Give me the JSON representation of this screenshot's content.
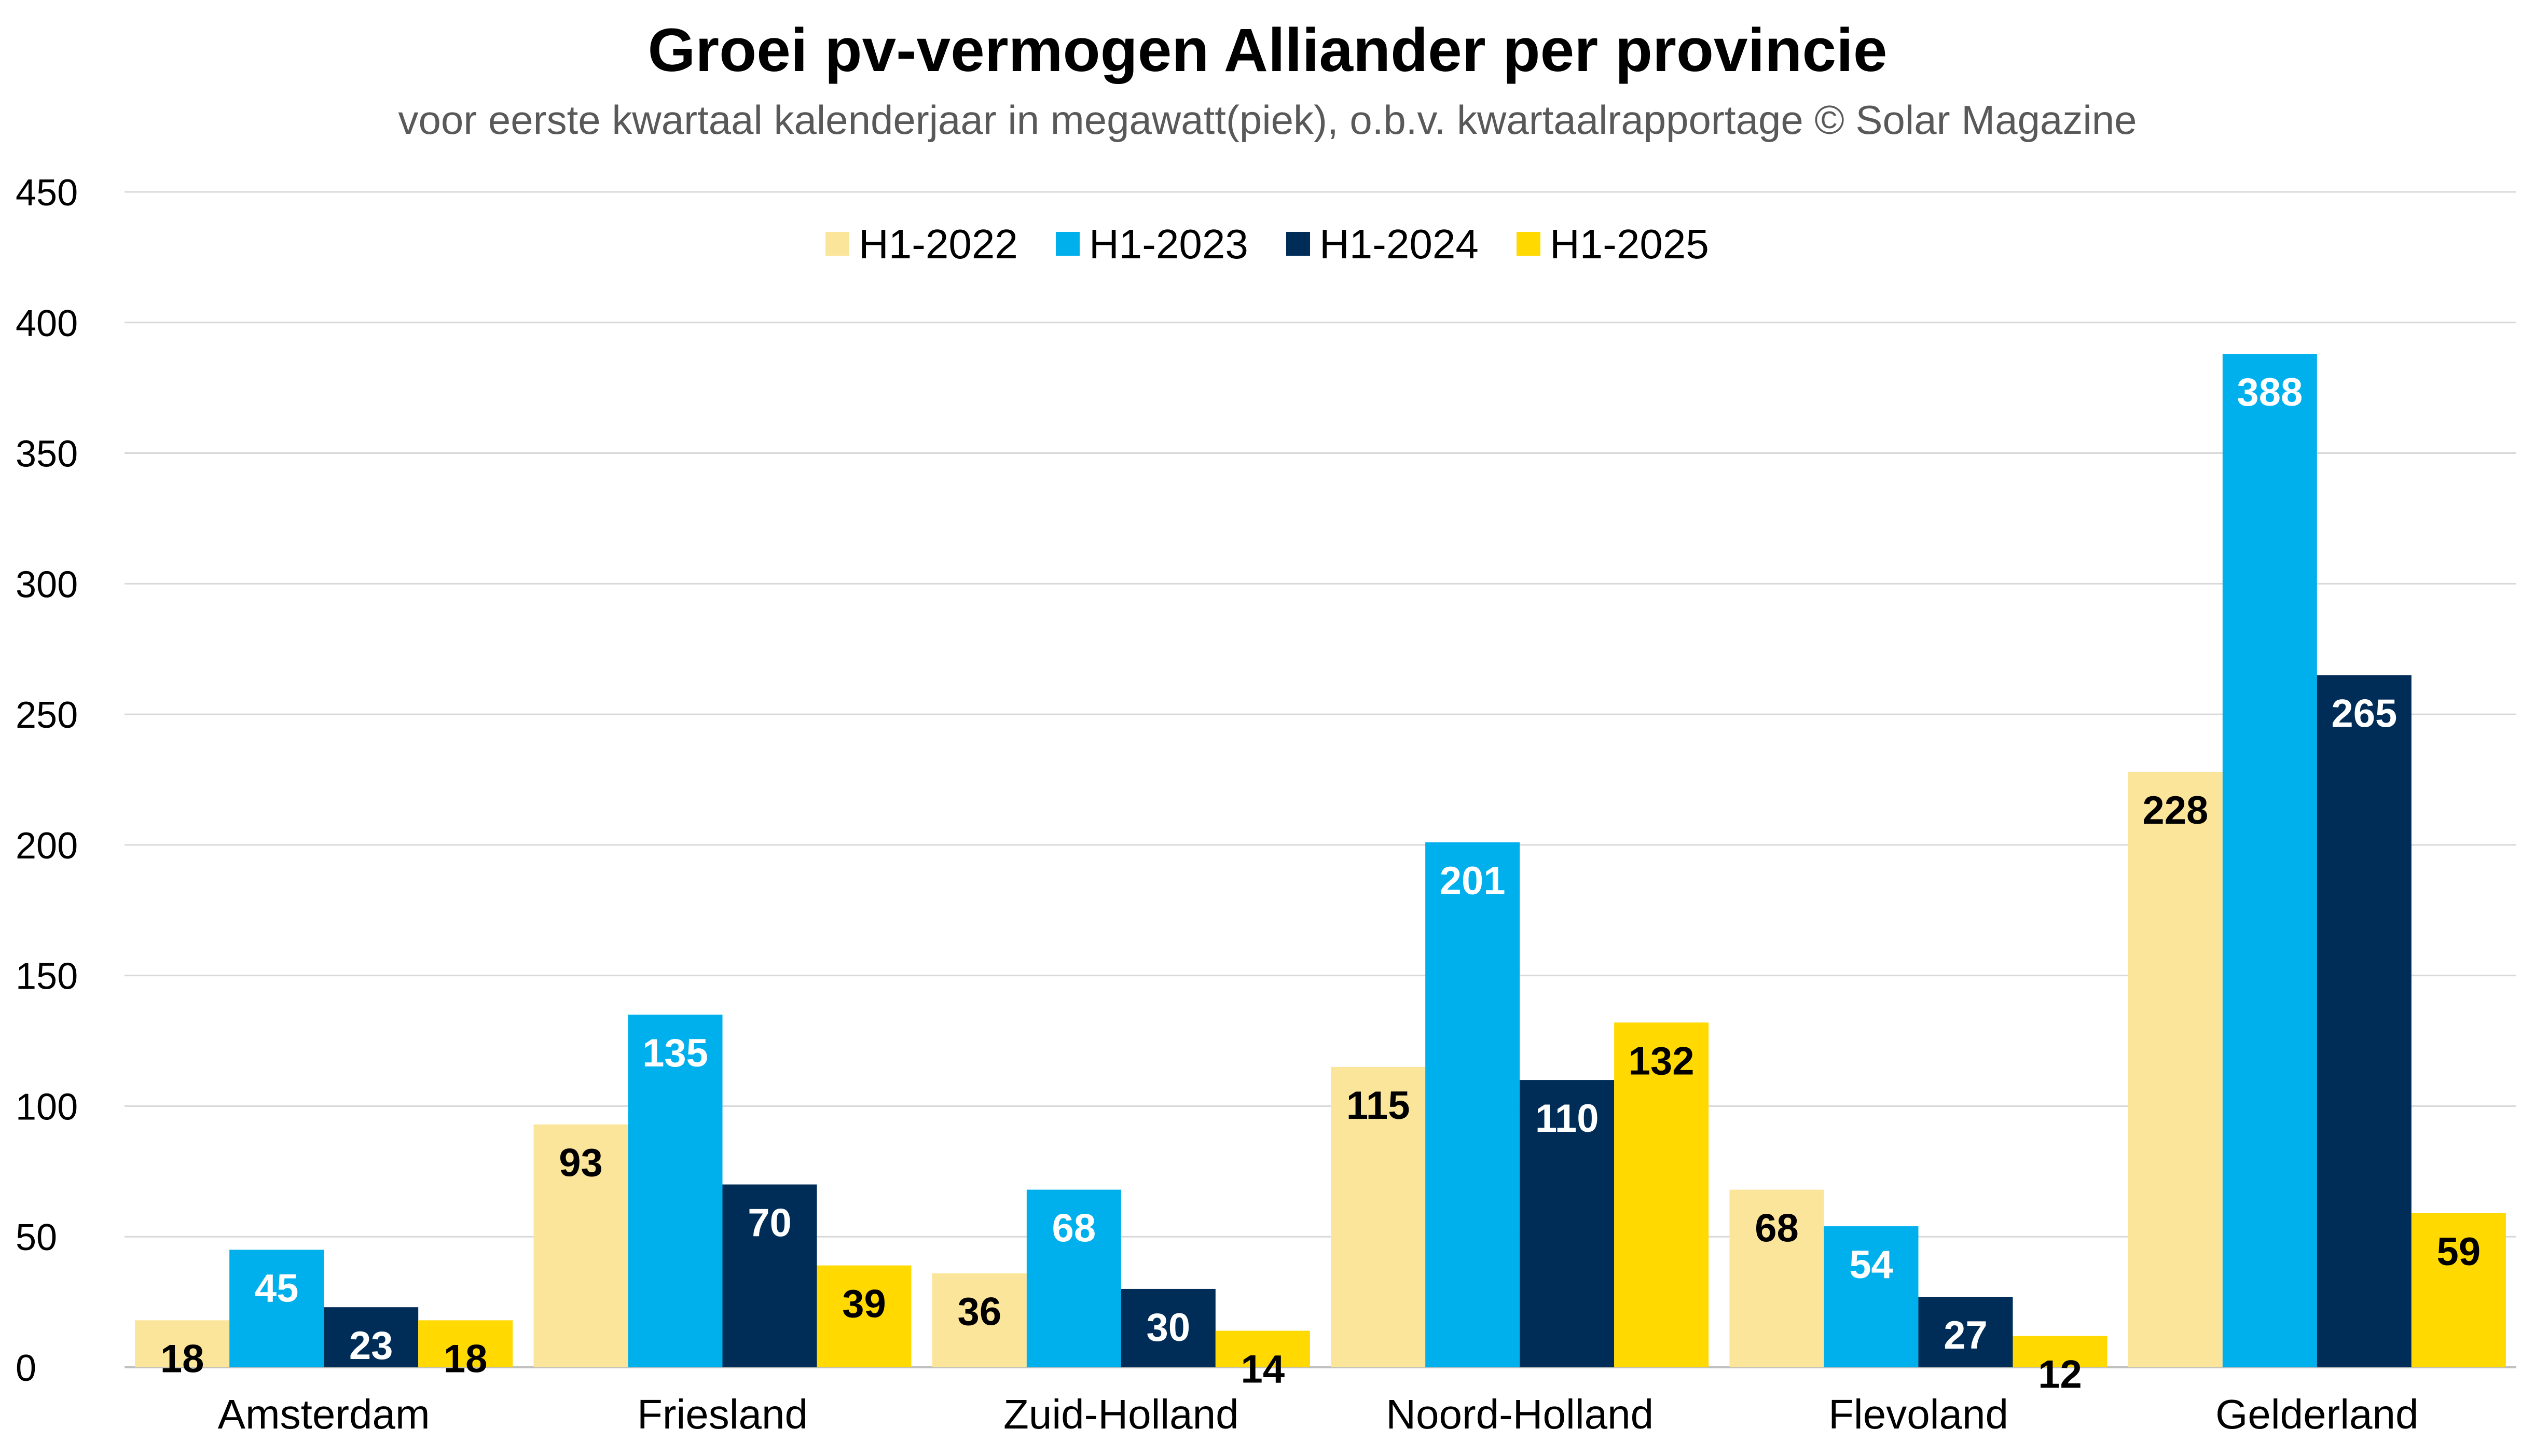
{
  "chart_data": {
    "type": "bar",
    "title": "Groei pv-vermogen Alliander per provincie",
    "subtitle": "voor eerste kwartaal kalenderjaar in megawatt(piek), o.b.v. kwartaalrapportage © Solar Magazine",
    "xlabel": "",
    "ylabel": "",
    "ylim": [
      0,
      450
    ],
    "yticks": [
      0,
      50,
      100,
      150,
      200,
      250,
      300,
      350,
      400,
      450
    ],
    "grid": true,
    "legend_position": "top-center",
    "categories": [
      "Amsterdam",
      "Friesland",
      "Zuid-Holland",
      "Noord-Holland",
      "Flevoland",
      "Gelderland"
    ],
    "series": [
      {
        "name": "H1-2022",
        "color": "#FBE59A",
        "label_color": "#000000",
        "values": [
          18,
          93,
          36,
          115,
          68,
          228
        ]
      },
      {
        "name": "H1-2023",
        "color": "#00B0EC",
        "label_color": "#FFFFFF",
        "values": [
          45,
          135,
          68,
          201,
          54,
          388
        ]
      },
      {
        "name": "H1-2024",
        "color": "#002D57",
        "label_color": "#FFFFFF",
        "values": [
          23,
          70,
          30,
          110,
          27,
          265
        ]
      },
      {
        "name": "H1-2025",
        "color": "#FFD900",
        "label_color": "#000000",
        "values": [
          18,
          39,
          14,
          132,
          12,
          59
        ]
      }
    ]
  }
}
